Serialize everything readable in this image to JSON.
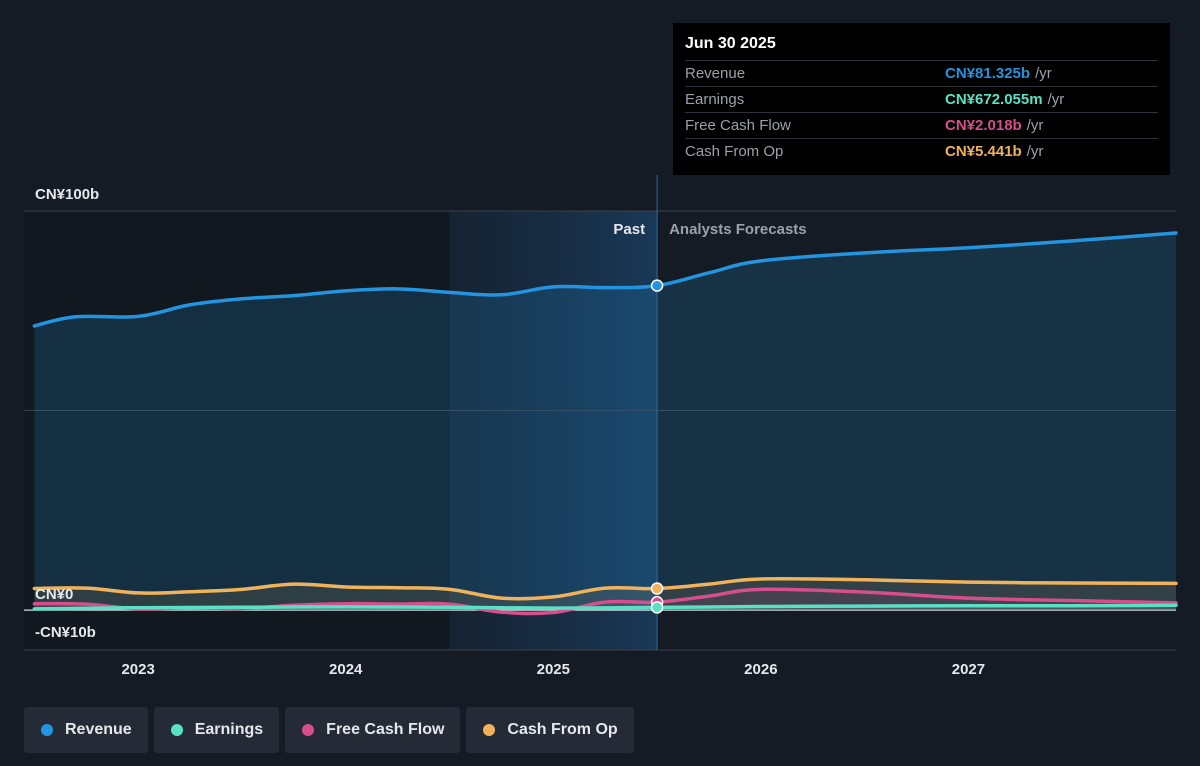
{
  "tooltip": {
    "date": "Jun 30 2025",
    "rows": [
      {
        "label": "Revenue",
        "value": "CN¥81.325b",
        "unit": "/yr",
        "color": "#2394df"
      },
      {
        "label": "Earnings",
        "value": "CN¥672.055m",
        "unit": "/yr",
        "color": "#58e1c4"
      },
      {
        "label": "Free Cash Flow",
        "value": "CN¥2.018b",
        "unit": "/yr",
        "color": "#d64e8b"
      },
      {
        "label": "Cash From Op",
        "value": "CN¥5.441b",
        "unit": "/yr",
        "color": "#f0b35b"
      }
    ]
  },
  "legend": [
    {
      "label": "Revenue",
      "color": "#2394df"
    },
    {
      "label": "Earnings",
      "color": "#58e1c4"
    },
    {
      "label": "Free Cash Flow",
      "color": "#d64e8b"
    },
    {
      "label": "Cash From Op",
      "color": "#f0b35b"
    }
  ],
  "chart_data": {
    "type": "line",
    "ylim": [
      -10,
      100
    ],
    "xlim": [
      2022.45,
      2028.0
    ],
    "y_ticks": [
      {
        "value": 100,
        "label": "CN¥100b"
      },
      {
        "value": 0,
        "label": "CN¥0"
      },
      {
        "value": -10,
        "label": "-CN¥10b"
      }
    ],
    "x_ticks": [
      {
        "value": 2023,
        "label": "2023"
      },
      {
        "value": 2024,
        "label": "2024"
      },
      {
        "value": 2025,
        "label": "2025"
      },
      {
        "value": 2026,
        "label": "2026"
      },
      {
        "value": 2027,
        "label": "2027"
      }
    ],
    "past_label": "Past",
    "forecast_label": "Analysts Forecasts",
    "highlight_start": 2024.5,
    "divider_x": 2025.5,
    "marker_x": 2025.5,
    "series": [
      {
        "name": "Revenue",
        "color": "#2394df",
        "fill": true,
        "points": [
          [
            2022.5,
            71.2
          ],
          [
            2022.7,
            73.5
          ],
          [
            2023.0,
            73.6
          ],
          [
            2023.25,
            76.5
          ],
          [
            2023.5,
            78.0
          ],
          [
            2023.75,
            78.8
          ],
          [
            2024.0,
            80.0
          ],
          [
            2024.25,
            80.5
          ],
          [
            2024.5,
            79.6
          ],
          [
            2024.75,
            79.0
          ],
          [
            2025.0,
            81.0
          ],
          [
            2025.25,
            80.8
          ],
          [
            2025.5,
            81.3
          ],
          [
            2025.75,
            84.5
          ],
          [
            2026.0,
            87.5
          ],
          [
            2026.5,
            89.5
          ],
          [
            2027.0,
            90.8
          ],
          [
            2027.5,
            92.5
          ],
          [
            2028.0,
            94.5
          ]
        ]
      },
      {
        "name": "Cash From Op",
        "color": "#f0b35b",
        "fill": false,
        "points": [
          [
            2022.5,
            5.4
          ],
          [
            2022.75,
            5.5
          ],
          [
            2023.0,
            4.3
          ],
          [
            2023.25,
            4.6
          ],
          [
            2023.5,
            5.2
          ],
          [
            2023.75,
            6.5
          ],
          [
            2024.0,
            5.8
          ],
          [
            2024.25,
            5.6
          ],
          [
            2024.5,
            5.2
          ],
          [
            2024.75,
            3.0
          ],
          [
            2025.0,
            3.3
          ],
          [
            2025.25,
            5.5
          ],
          [
            2025.5,
            5.4
          ],
          [
            2025.75,
            6.5
          ],
          [
            2026.0,
            7.8
          ],
          [
            2026.5,
            7.6
          ],
          [
            2027.0,
            7.0
          ],
          [
            2027.5,
            6.8
          ],
          [
            2028.0,
            6.7
          ]
        ]
      },
      {
        "name": "Free Cash Flow",
        "color": "#d64e8b",
        "fill": false,
        "points": [
          [
            2022.5,
            1.6
          ],
          [
            2022.75,
            1.5
          ],
          [
            2023.0,
            0.3
          ],
          [
            2023.25,
            0.6
          ],
          [
            2023.5,
            0.4
          ],
          [
            2023.75,
            1.2
          ],
          [
            2024.0,
            1.6
          ],
          [
            2024.25,
            1.5
          ],
          [
            2024.5,
            1.5
          ],
          [
            2024.75,
            -0.5
          ],
          [
            2025.0,
            -0.6
          ],
          [
            2025.25,
            2.0
          ],
          [
            2025.5,
            2.0
          ],
          [
            2025.75,
            3.5
          ],
          [
            2026.0,
            5.2
          ],
          [
            2026.5,
            4.5
          ],
          [
            2027.0,
            3.0
          ],
          [
            2027.5,
            2.4
          ],
          [
            2028.0,
            1.8
          ]
        ]
      },
      {
        "name": "Earnings",
        "color": "#58e1c4",
        "fill": false,
        "points": [
          [
            2022.5,
            0.3
          ],
          [
            2023.0,
            0.6
          ],
          [
            2023.5,
            0.7
          ],
          [
            2024.0,
            0.8
          ],
          [
            2024.5,
            0.7
          ],
          [
            2025.0,
            0.5
          ],
          [
            2025.5,
            0.67
          ],
          [
            2026.0,
            0.9
          ],
          [
            2026.5,
            1.0
          ],
          [
            2027.0,
            1.1
          ],
          [
            2027.5,
            1.1
          ],
          [
            2028.0,
            1.2
          ]
        ]
      }
    ]
  }
}
